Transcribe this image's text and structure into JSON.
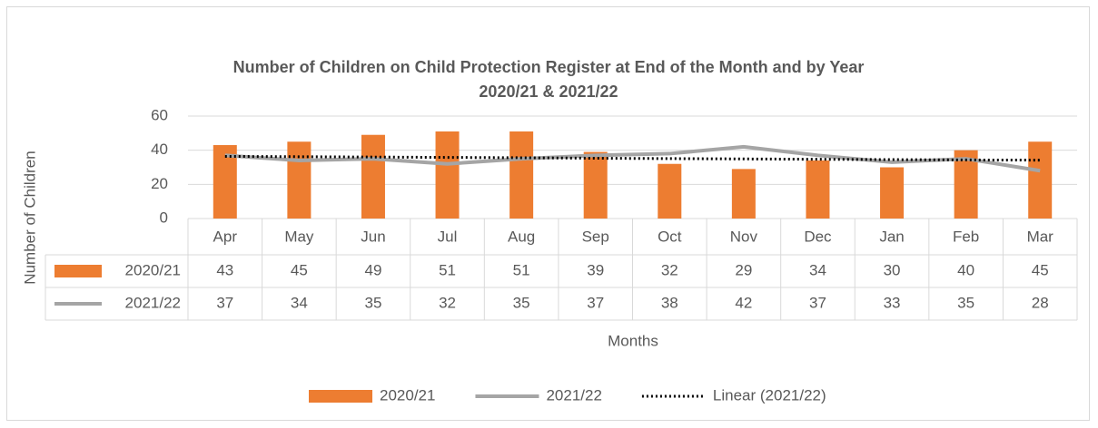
{
  "chart_data": {
    "type": "bar-line",
    "title": "Number of Children on Child Protection Register at End of the Month and by Year",
    "subtitle": "2020/21 & 2021/22",
    "y_label": "Number of Children",
    "x_label": "Months",
    "categories": [
      "Apr",
      "May",
      "Jun",
      "Jul",
      "Aug",
      "Sep",
      "Oct",
      "Nov",
      "Dec",
      "Jan",
      "Feb",
      "Mar"
    ],
    "series": [
      {
        "name": "2020/21",
        "color": "#ed7d31",
        "kind": "bar",
        "values": [
          43,
          45,
          49,
          51,
          51,
          39,
          32,
          29,
          34,
          30,
          40,
          45
        ]
      },
      {
        "name": "2021/22",
        "color": "#a5a5a5",
        "kind": "line",
        "values": [
          37,
          34,
          35,
          32,
          35,
          37,
          38,
          42,
          37,
          33,
          35,
          28
        ]
      },
      {
        "name": "Linear (2021/22)",
        "color": "#000000",
        "kind": "line",
        "style": "dotted",
        "values": [
          36.4,
          36.2,
          36.0,
          35.8,
          35.6,
          35.3,
          35.1,
          34.9,
          34.7,
          34.5,
          34.3,
          34.2
        ]
      }
    ],
    "data_table": true,
    "ylim": [
      0,
      60
    ],
    "yticks": [
      0,
      20,
      40,
      60
    ],
    "grid": true,
    "legend": "bottom"
  }
}
